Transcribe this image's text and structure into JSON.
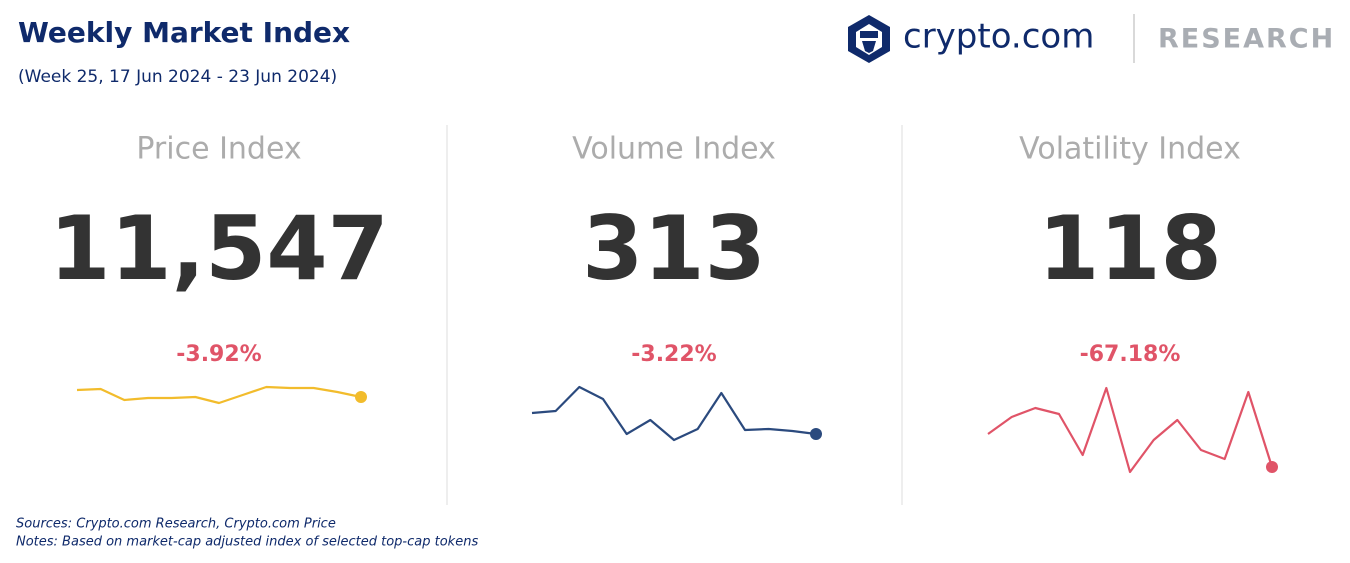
{
  "header": {
    "title": "Weekly Market Index",
    "subtitle": "(Week 25, 17 Jun 2024 - 23 Jun 2024)"
  },
  "logo": {
    "brand": "crypto.com",
    "label": "RESEARCH"
  },
  "chart_data": [
    {
      "type": "line",
      "title": "Price Index",
      "index": {
        "value": 11547,
        "label": "11,547"
      },
      "change": {
        "value": -3.92,
        "label": "-3.92%"
      },
      "color": "#f2bc2c",
      "values": [
        20,
        21,
        10,
        12,
        12,
        13,
        7,
        15,
        23,
        22,
        22,
        18,
        13
      ]
    },
    {
      "type": "line",
      "title": "Volume Index",
      "index": 313,
      "change": {
        "value": -3.22,
        "label": "-3.22%"
      },
      "color": "#2b4a7e",
      "values": [
        37,
        39,
        63,
        51,
        16,
        30,
        10,
        21,
        57,
        20,
        21,
        19,
        16
      ]
    },
    {
      "type": "line",
      "title": "Volatility Index",
      "index": 118,
      "change": {
        "value": -67.18,
        "label": "-67.18%"
      },
      "color": "#e05468",
      "values": [
        46,
        63,
        72,
        66,
        25,
        92,
        8,
        40,
        60,
        30,
        21,
        88,
        13
      ]
    }
  ],
  "footer": {
    "sources": "Sources: Crypto.com Research,  Crypto.com Price",
    "notes": "Notes: Based on market-cap adjusted index of selected top-cap tokens"
  }
}
